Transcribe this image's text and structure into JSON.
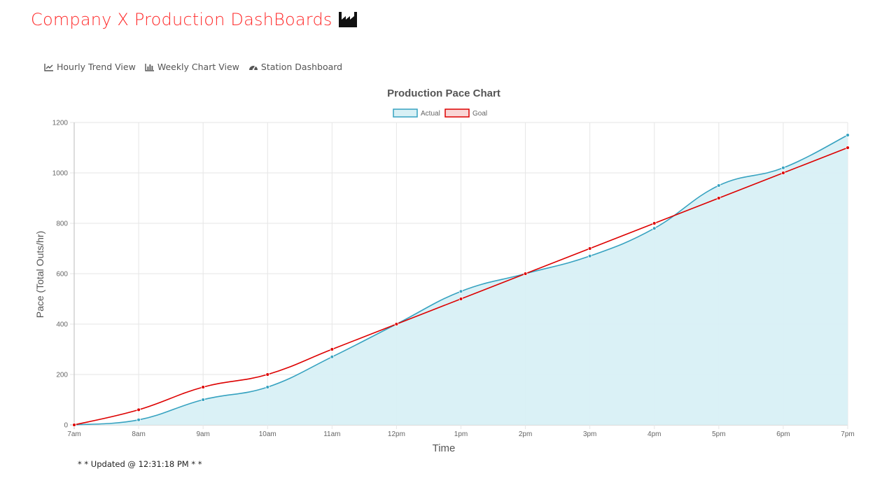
{
  "header": {
    "title": "Company X Production DashBoards",
    "icon": "factory-icon",
    "title_color": "#ff2a2a"
  },
  "nav": {
    "items": [
      {
        "label": "Hourly Trend View",
        "icon": "line-chart-icon"
      },
      {
        "label": "Weekly Chart View",
        "icon": "bar-chart-icon"
      },
      {
        "label": "Station Dashboard",
        "icon": "dashboard-gauge-icon"
      }
    ]
  },
  "chart_data": {
    "type": "line",
    "title": "Production Pace Chart",
    "xlabel": "Time",
    "ylabel": "Pace (Total Outs/hr)",
    "categories": [
      "7am",
      "8am",
      "9am",
      "10am",
      "11am",
      "12pm",
      "1pm",
      "2pm",
      "3pm",
      "4pm",
      "5pm",
      "6pm",
      "7pm"
    ],
    "ylim": [
      0,
      1200
    ],
    "yticks": [
      0,
      200,
      400,
      600,
      800,
      1000,
      1200
    ],
    "grid": true,
    "legend": "top-center",
    "series": [
      {
        "name": "Actual",
        "values": [
          0,
          20,
          100,
          150,
          270,
          400,
          530,
          600,
          670,
          780,
          950,
          1020,
          1150
        ],
        "color": "#36a2c0",
        "fill": "#d8f0f5"
      },
      {
        "name": "Goal",
        "values": [
          0,
          60,
          150,
          200,
          300,
          400,
          500,
          600,
          700,
          800,
          900,
          1000,
          1100
        ],
        "color": "#dd0000",
        "fill": "#f9d6d6"
      }
    ]
  },
  "footer": {
    "updated_text": "* * Updated @ 12:31:18 PM * *"
  }
}
